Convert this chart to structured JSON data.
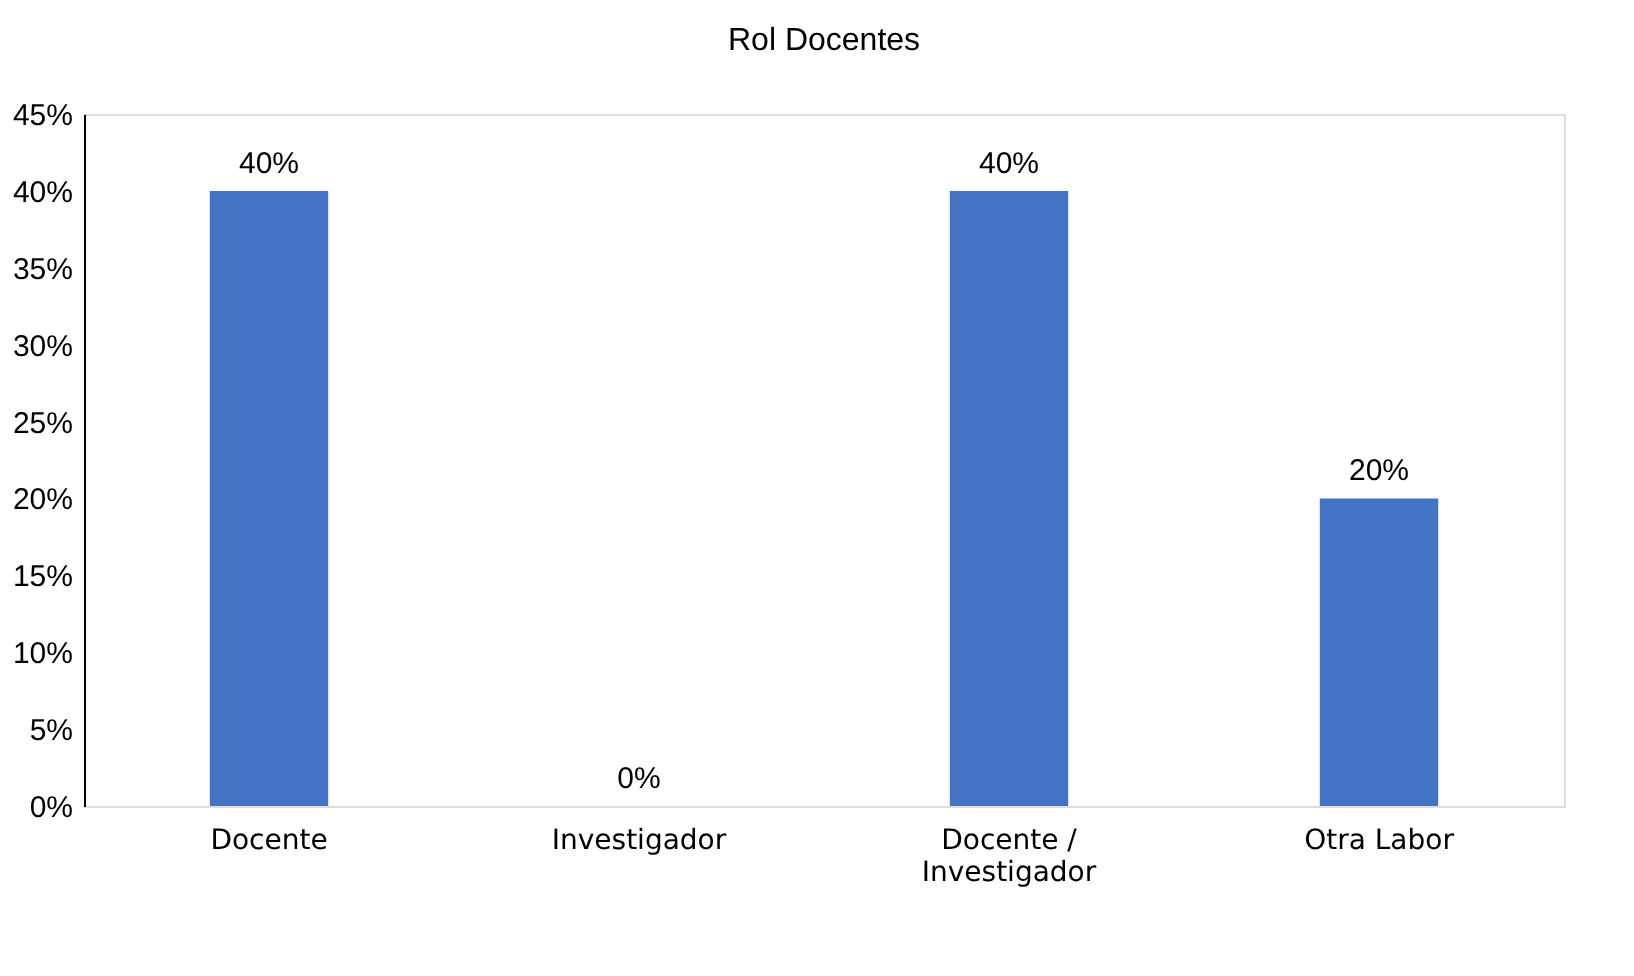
{
  "chart_data": {
    "type": "bar",
    "title": "Rol Docentes",
    "categories": [
      "Docente",
      "Investigador",
      "Docente / Investigador",
      "Otra Labor"
    ],
    "values": [
      40,
      0,
      40,
      20
    ],
    "value_labels": [
      "40%",
      "0%",
      "40%",
      "20%"
    ],
    "color": "#4472c4",
    "ylim": [
      0,
      45
    ],
    "yticks": [
      {
        "value": 0,
        "label": "0%"
      },
      {
        "value": 5,
        "label": "5%"
      },
      {
        "value": 10,
        "label": "10%"
      },
      {
        "value": 15,
        "label": "15%"
      },
      {
        "value": 20,
        "label": "20%"
      },
      {
        "value": 25,
        "label": "25%"
      },
      {
        "value": 30,
        "label": "30%"
      },
      {
        "value": 35,
        "label": "35%"
      },
      {
        "value": 40,
        "label": "40%"
      },
      {
        "value": 45,
        "label": "45%"
      }
    ],
    "grid": false
  }
}
